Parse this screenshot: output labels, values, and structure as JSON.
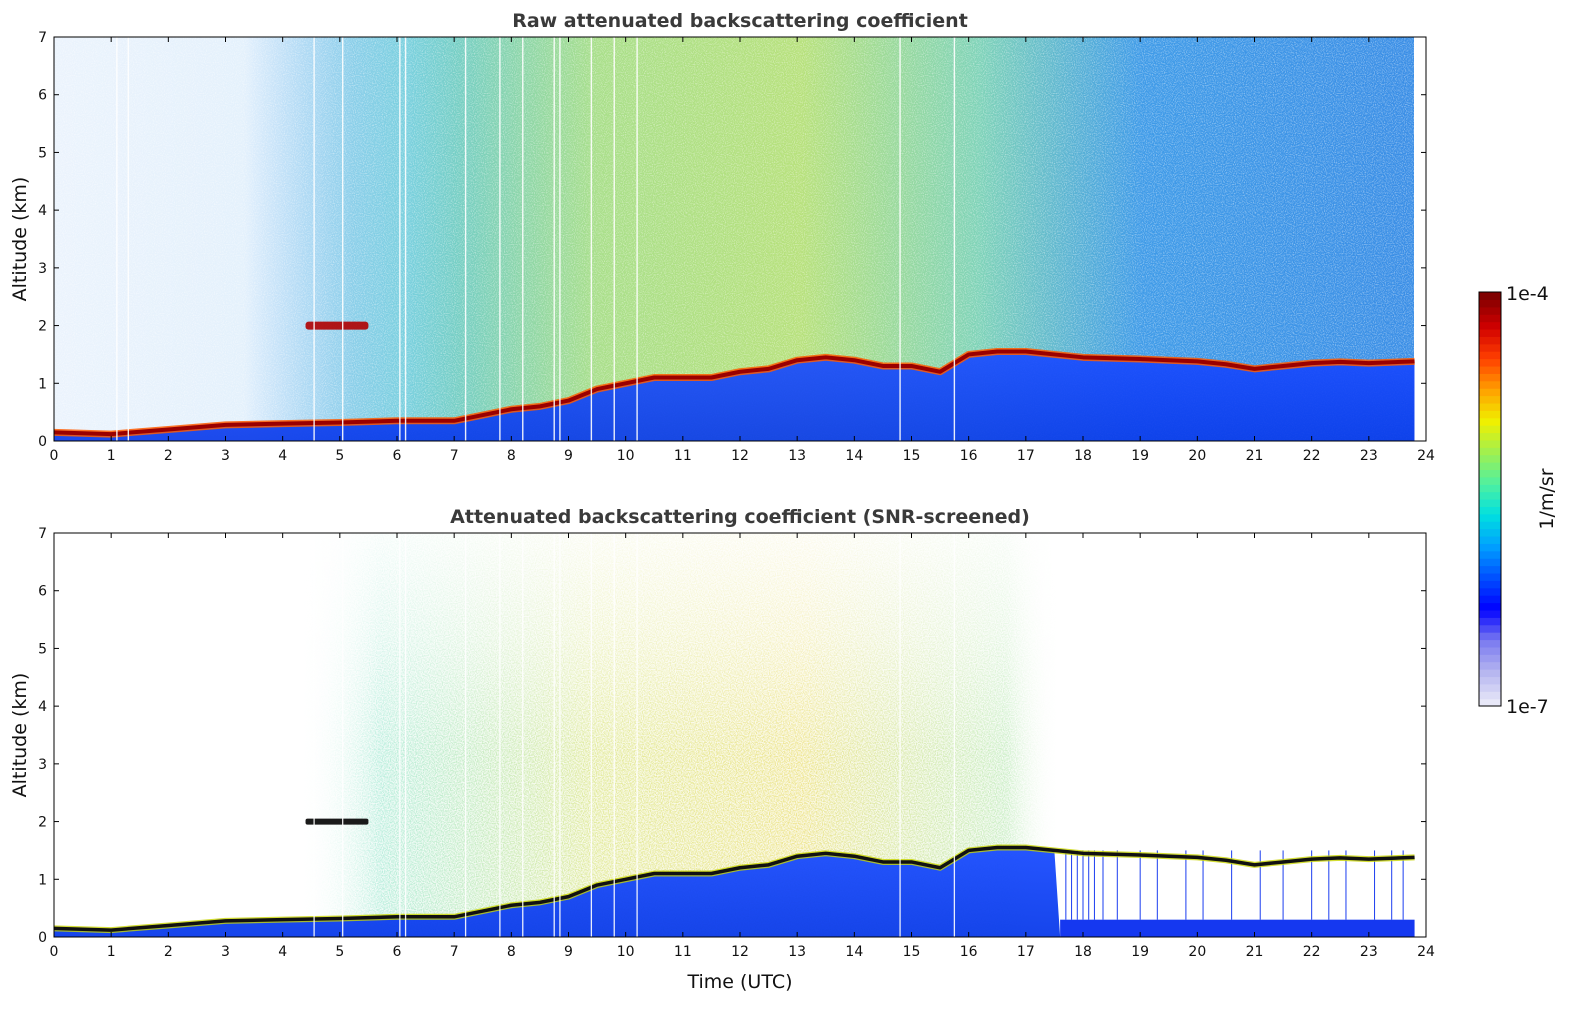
{
  "chart_data": [
    {
      "type": "heatmap",
      "title": "Raw attenuated backscattering coefficient",
      "xlabel": "",
      "ylabel": "Altitude (km)",
      "xlim": [
        0,
        24
      ],
      "ylim": [
        0,
        7
      ],
      "x_ticks": [
        "0",
        "1",
        "2",
        "3",
        "4",
        "5",
        "6",
        "7",
        "8",
        "9",
        "10",
        "11",
        "12",
        "13",
        "14",
        "15",
        "16",
        "17",
        "18",
        "19",
        "20",
        "21",
        "22",
        "23",
        "24"
      ],
      "y_ticks": [
        "0",
        "1",
        "2",
        "3",
        "4",
        "5",
        "6",
        "7"
      ],
      "data_end_hour": 23.8,
      "layer_altitude_km": [
        [
          0,
          0.15
        ],
        [
          1,
          0.12
        ],
        [
          2,
          0.2
        ],
        [
          3,
          0.28
        ],
        [
          4,
          0.3
        ],
        [
          5,
          0.32
        ],
        [
          6,
          0.35
        ],
        [
          7,
          0.35
        ],
        [
          7.5,
          0.45
        ],
        [
          8,
          0.55
        ],
        [
          8.5,
          0.6
        ],
        [
          9,
          0.7
        ],
        [
          9.5,
          0.9
        ],
        [
          10,
          1.0
        ],
        [
          10.5,
          1.1
        ],
        [
          11,
          1.1
        ],
        [
          11.5,
          1.1
        ],
        [
          12,
          1.2
        ],
        [
          12.5,
          1.25
        ],
        [
          13,
          1.4
        ],
        [
          13.5,
          1.45
        ],
        [
          14,
          1.4
        ],
        [
          14.5,
          1.3
        ],
        [
          15,
          1.3
        ],
        [
          15.5,
          1.2
        ],
        [
          16,
          1.5
        ],
        [
          16.5,
          1.55
        ],
        [
          17,
          1.55
        ],
        [
          17.5,
          1.5
        ],
        [
          18,
          1.45
        ],
        [
          19,
          1.42
        ],
        [
          19.5,
          1.4
        ],
        [
          20,
          1.38
        ],
        [
          20.5,
          1.33
        ],
        [
          21,
          1.25
        ],
        [
          21.5,
          1.3
        ],
        [
          22,
          1.35
        ],
        [
          22.5,
          1.37
        ],
        [
          23,
          1.35
        ],
        [
          23.8,
          1.38
        ]
      ],
      "elevated_layer": {
        "x_range_hours": [
          4.4,
          5.5
        ],
        "altitude_km": 2.0
      }
    },
    {
      "type": "heatmap",
      "title": "Attenuated backscattering coefficient (SNR-screened)",
      "xlabel": "Time (UTC)",
      "ylabel": "Altitude (km)",
      "xlim": [
        0,
        24
      ],
      "ylim": [
        0,
        7
      ],
      "x_ticks": [
        "0",
        "1",
        "2",
        "3",
        "4",
        "5",
        "6",
        "7",
        "8",
        "9",
        "10",
        "11",
        "12",
        "13",
        "14",
        "15",
        "16",
        "17",
        "18",
        "19",
        "20",
        "21",
        "22",
        "23",
        "24"
      ],
      "y_ticks": [
        "0",
        "1",
        "2",
        "3",
        "4",
        "5",
        "6",
        "7"
      ],
      "data_end_hour": 23.8,
      "elevated_layer": {
        "x_range_hours": [
          4.4,
          5.5
        ],
        "altitude_km": 2.0
      }
    }
  ],
  "colorbar": {
    "label": "1/m/sr",
    "max_label": "1e-4",
    "min_label": "1e-7",
    "scale": "log",
    "stops": [
      "#e8e8f8",
      "#b4b4f0",
      "#7878f0",
      "#0000ff",
      "#0050ff",
      "#00a0ff",
      "#00e0e0",
      "#50f0a0",
      "#a0f050",
      "#f0f000",
      "#ffa000",
      "#ff4000",
      "#d00000",
      "#800000"
    ]
  }
}
